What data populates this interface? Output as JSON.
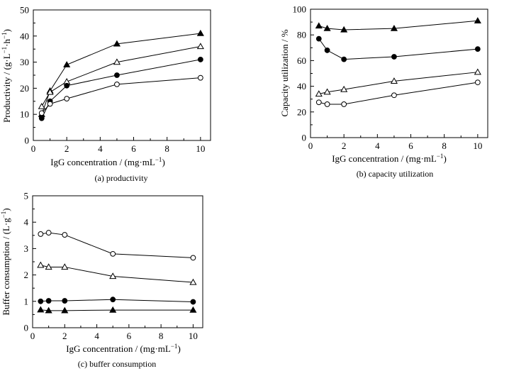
{
  "chart_data": [
    {
      "type": "line",
      "caption": "(a) productivity",
      "xlabel": "IgG concentration  / (mg·mL",
      "xlabel_sup": "−1",
      "xlabel_tail": ")",
      "ylabel": "Productivity / (g·L",
      "ylabel_sup1": "−1",
      "ylabel_mid": "·h",
      "ylabel_sup2": "−1",
      "ylabel_tail": ")",
      "xlim": [
        0,
        10.6
      ],
      "ylim": [
        0,
        50
      ],
      "xticks": [
        0,
        2,
        4,
        6,
        8,
        10
      ],
      "yticks": [
        0,
        10,
        20,
        30,
        40,
        50
      ],
      "x": [
        0.5,
        1,
        2,
        5,
        10
      ],
      "series": [
        {
          "marker": "filled-triangle",
          "values": [
            10,
            19,
            29,
            37,
            41
          ]
        },
        {
          "marker": "open-triangle",
          "values": [
            13,
            18.5,
            22.5,
            30,
            36
          ]
        },
        {
          "marker": "filled-circle",
          "values": [
            8.5,
            15,
            21,
            25,
            31
          ]
        },
        {
          "marker": "open-circle",
          "values": [
            10.5,
            14,
            16,
            21.5,
            24
          ]
        }
      ]
    },
    {
      "type": "line",
      "caption": "(b) capacity utilization",
      "xlabel": "IgG concentration  / (mg·mL",
      "xlabel_sup": "−1",
      "xlabel_tail": ")",
      "ylabel": "Capacity utilization / %",
      "xlim": [
        0,
        10.6
      ],
      "ylim": [
        0,
        100
      ],
      "xticks": [
        0,
        2,
        4,
        6,
        8,
        10
      ],
      "yticks": [
        0,
        20,
        40,
        60,
        80,
        100
      ],
      "x": [
        0.5,
        1,
        2,
        5,
        10
      ],
      "series": [
        {
          "marker": "filled-triangle",
          "values": [
            87,
            85,
            84,
            85,
            91
          ]
        },
        {
          "marker": "filled-circle",
          "values": [
            77,
            68,
            61,
            63,
            69
          ]
        },
        {
          "marker": "open-triangle",
          "values": [
            34,
            35.5,
            37.5,
            44,
            51
          ]
        },
        {
          "marker": "open-circle",
          "values": [
            27.5,
            26,
            26,
            33,
            43
          ]
        }
      ]
    },
    {
      "type": "line",
      "caption": "(c) buffer consumption",
      "xlabel": "IgG concentration  / (mg·mL",
      "xlabel_sup": "−1",
      "xlabel_tail": ")",
      "ylabel": "Buffer consumption / (L·g",
      "ylabel_sup1": "−1",
      "ylabel_tail": ")",
      "xlim": [
        0,
        10.6
      ],
      "ylim": [
        0,
        5
      ],
      "xticks": [
        0,
        2,
        4,
        6,
        8,
        10
      ],
      "yticks": [
        0,
        1,
        2,
        3,
        4,
        5
      ],
      "x": [
        0.5,
        1,
        2,
        5,
        10
      ],
      "series": [
        {
          "marker": "open-circle",
          "values": [
            3.55,
            3.6,
            3.52,
            2.8,
            2.65
          ]
        },
        {
          "marker": "open-triangle",
          "values": [
            2.37,
            2.3,
            2.3,
            1.95,
            1.72
          ]
        },
        {
          "marker": "filled-circle",
          "values": [
            1.0,
            1.02,
            1.02,
            1.07,
            0.98
          ]
        },
        {
          "marker": "filled-triangle",
          "values": [
            0.68,
            0.65,
            0.65,
            0.67,
            0.67
          ]
        }
      ]
    }
  ]
}
